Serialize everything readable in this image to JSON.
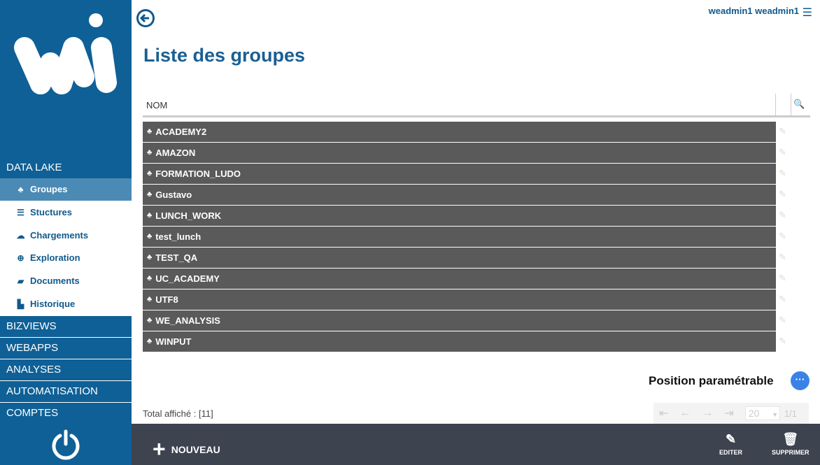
{
  "header": {
    "user": "weadmin1 weadmin1",
    "page_title": "Liste des groupes"
  },
  "sidebar": {
    "section_data_lake": "DATA LAKE",
    "items": [
      {
        "label": "Groupes",
        "icon": "sitemap-icon"
      },
      {
        "label": "Stuctures",
        "icon": "list-icon"
      },
      {
        "label": "Chargements",
        "icon": "cloud-upload-icon"
      },
      {
        "label": "Exploration",
        "icon": "search-plus-icon"
      },
      {
        "label": "Documents",
        "icon": "book-icon"
      },
      {
        "label": "Historique",
        "icon": "bar-chart-icon"
      }
    ],
    "sections": [
      "BIZVIEWS",
      "WEBAPPS",
      "ANALYSES",
      "AUTOMATISATION",
      "COMPTES"
    ]
  },
  "table": {
    "column": "NOM",
    "rows": [
      "ACADEMY2",
      "AMAZON",
      "FORMATION_LUDO",
      "Gustavo",
      "LUNCH_WORK",
      "test_lunch",
      "TEST_QA",
      "UC_ACADEMY",
      "UTF8",
      "WE_ANALYSIS",
      "WINPUT"
    ]
  },
  "position_label": "Position paramétrable",
  "total": "Total affiché : [11]",
  "pager": {
    "page_size": "20",
    "page": "1/1"
  },
  "actions": {
    "new": "NOUVEAU",
    "edit": "EDITER",
    "delete": "SUPPRIMER"
  },
  "colors": {
    "primary": "#0f6096",
    "active": "#4b8ab5",
    "row": "#5a5a5a",
    "bottom_bar": "#3d4450"
  }
}
